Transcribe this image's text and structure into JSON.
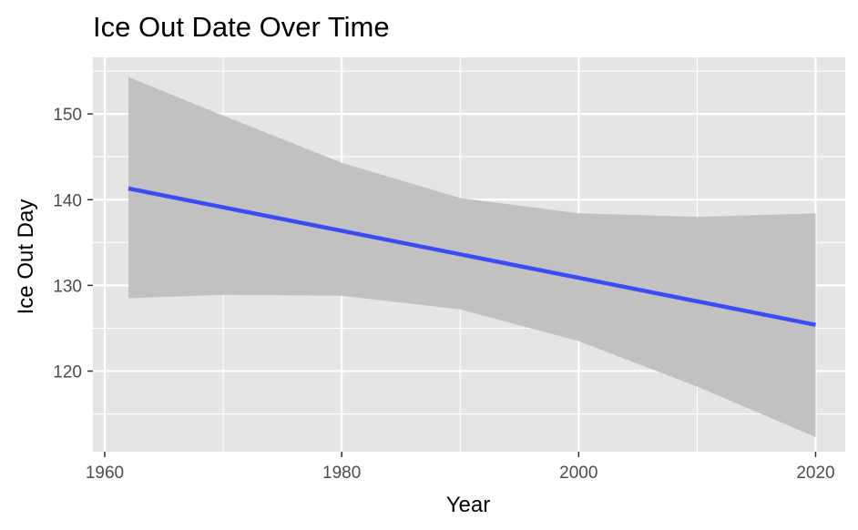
{
  "chart_data": {
    "type": "line",
    "title": "Ice Out Date Over Time",
    "xlabel": "Year",
    "ylabel": "Ice Out Day",
    "xlim": [
      1959,
      2022.5
    ],
    "ylim": [
      110.6,
      156.6
    ],
    "x_ticks": [
      1960,
      1980,
      2000,
      2020
    ],
    "x_tick_labels": [
      "1960",
      "1980",
      "2000",
      "2020"
    ],
    "y_ticks": [
      120,
      130,
      140,
      150
    ],
    "y_tick_labels": [
      "120",
      "130",
      "140",
      "150"
    ],
    "grid": true,
    "legend": "none",
    "colors": {
      "panel": "#e5e5e5",
      "grid": "#ffffff",
      "line": "#3a4cf5",
      "band": "#bdbdbd",
      "tick_text": "#4d4d4d"
    },
    "series": [
      {
        "type": "line",
        "x": [
          1962,
          2020
        ],
        "values": [
          141.3,
          125.4
        ]
      }
    ],
    "confidence_band": {
      "x": [
        1962,
        1970,
        1980,
        1990,
        2000,
        2010,
        2020
      ],
      "upper": [
        154.3,
        149.8,
        144.3,
        140.2,
        138.4,
        138.0,
        138.4
      ],
      "lower": [
        128.5,
        128.9,
        128.8,
        127.2,
        123.5,
        118.2,
        112.3
      ]
    }
  }
}
